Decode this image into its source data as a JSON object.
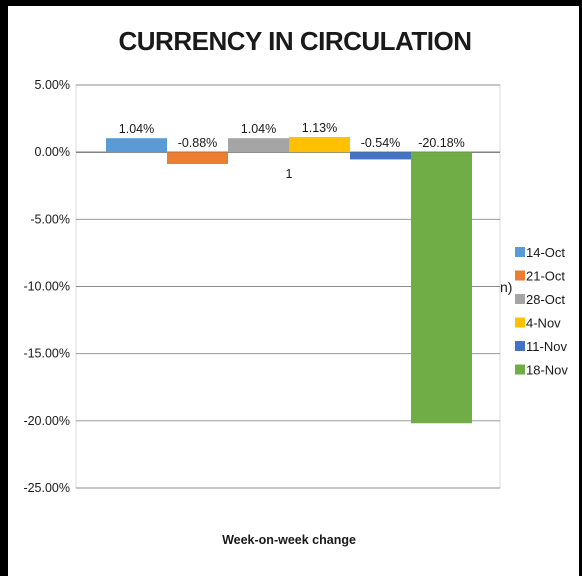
{
  "chart_data": {
    "type": "bar",
    "title": "CURRENCY IN CIRCULATION",
    "xlabel": "Week-on-week change",
    "ylabel": "",
    "ylim": [
      -25,
      5
    ],
    "yticks": [
      "5.00%",
      "0.00%",
      "-5.00%",
      "-10.00%",
      "-15.00%",
      "-20.00%",
      "-25.00%"
    ],
    "ytick_values": [
      5,
      0,
      -5,
      -10,
      -15,
      -20,
      -25
    ],
    "category": "1",
    "grid": true,
    "legend_position": "right",
    "series": [
      {
        "name": "14-Oct",
        "value": 1.04,
        "label": "1.04%",
        "color": "#5b9bd5"
      },
      {
        "name": "21-Oct",
        "value": -0.88,
        "label": "-0.88%",
        "color": "#ed7d31"
      },
      {
        "name": "28-Oct",
        "value": 1.04,
        "label": "1.04%",
        "color": "#a5a5a5"
      },
      {
        "name": "4-Nov",
        "value": 1.13,
        "label": "1.13%",
        "color": "#ffc000"
      },
      {
        "name": "11-Nov",
        "value": -0.54,
        "label": "-0.54%",
        "color": "#4472c4"
      },
      {
        "name": "18-Nov",
        "value": -20.18,
        "label": "-20.18%",
        "color": "#70ad47"
      }
    ],
    "stray_text": "n)"
  }
}
